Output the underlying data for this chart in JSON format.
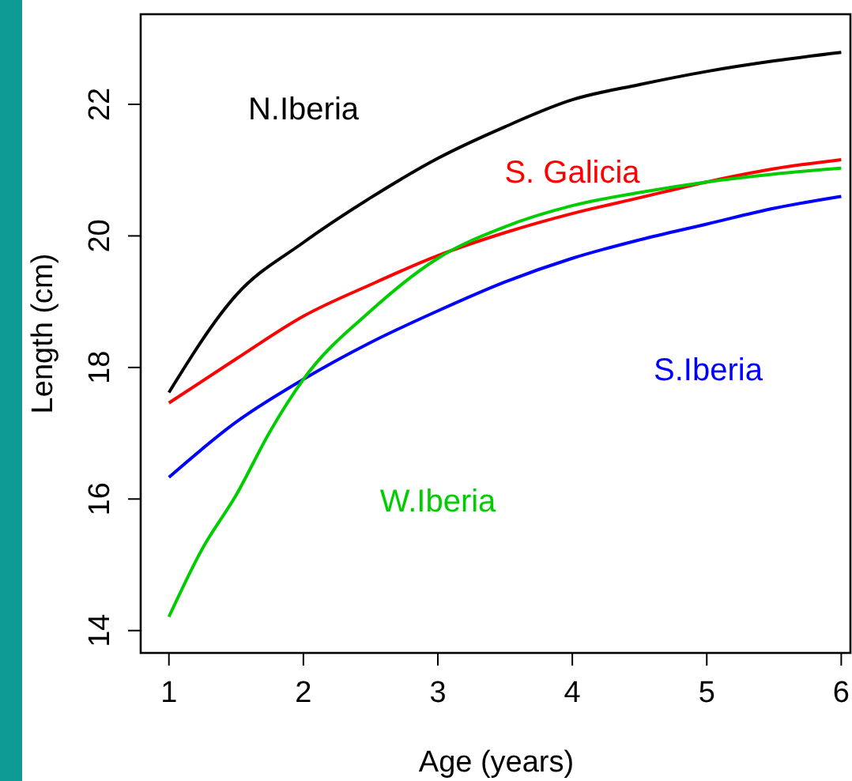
{
  "chart_data": {
    "type": "line",
    "xlabel": "Age (years)",
    "ylabel": "Length (cm)",
    "x": [
      1,
      1.5,
      2,
      2.5,
      3,
      3.5,
      4,
      4.5,
      5,
      5.5,
      6
    ],
    "xlim": [
      0.79,
      6.08
    ],
    "ylim": [
      13.66,
      23.37
    ],
    "xticks": [
      1,
      2,
      3,
      4,
      5,
      6
    ],
    "yticks": [
      14,
      16,
      18,
      20,
      22
    ],
    "line_style": "solid",
    "marker": "none",
    "series": [
      {
        "name": "N.Iberia",
        "color": "#000000",
        "values": [
          17.62,
          19.1,
          19.9,
          20.58,
          21.18,
          21.66,
          22.07,
          22.3,
          22.5,
          22.66,
          22.79
        ]
      },
      {
        "name": "S. Galicia",
        "color": "#ff0000",
        "values": [
          17.46,
          18.13,
          18.78,
          19.26,
          19.7,
          20.05,
          20.34,
          20.58,
          20.82,
          21.02,
          21.16
        ]
      },
      {
        "name": "S.Iberia",
        "color": "#0000ff",
        "values": [
          16.33,
          17.17,
          17.82,
          18.38,
          18.86,
          19.3,
          19.66,
          19.94,
          20.18,
          20.42,
          20.6
        ]
      },
      {
        "name": "W.Iberia",
        "color": "#00cd00",
        "x": [
          1,
          1.25,
          1.5,
          1.75,
          2,
          2.5,
          3,
          3.5,
          4,
          4.5,
          5,
          5.5,
          6
        ],
        "values": [
          14.21,
          15.25,
          16.06,
          17.02,
          17.82,
          18.86,
          19.66,
          20.14,
          20.46,
          20.66,
          20.82,
          20.94,
          21.03
        ]
      }
    ]
  }
}
